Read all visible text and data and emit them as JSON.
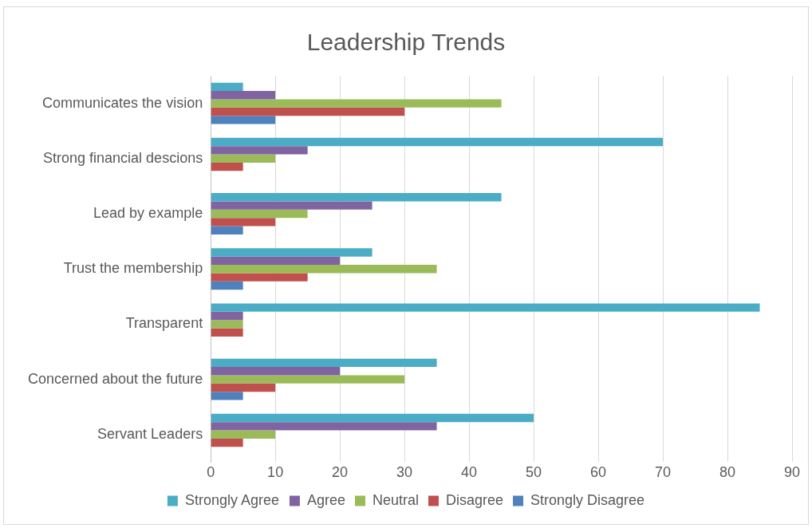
{
  "chart_data": {
    "type": "bar",
    "orientation": "horizontal",
    "title": "Leadership Trends",
    "categories": [
      "Communicates the vision",
      "Strong financial descions",
      "Lead by example",
      "Trust the membership",
      "Transparent",
      "Concerned about the future",
      "Servant Leaders"
    ],
    "series": [
      {
        "name": "Strongly Agree",
        "color": "#4bacc6",
        "values": [
          5,
          70,
          45,
          25,
          85,
          35,
          50
        ]
      },
      {
        "name": "Agree",
        "color": "#8064a2",
        "values": [
          10,
          15,
          25,
          20,
          5,
          20,
          35
        ]
      },
      {
        "name": "Neutral",
        "color": "#9bbb59",
        "values": [
          45,
          10,
          15,
          35,
          5,
          30,
          10
        ]
      },
      {
        "name": "Disagree",
        "color": "#c0504d",
        "values": [
          30,
          5,
          10,
          15,
          5,
          10,
          5
        ]
      },
      {
        "name": "Strongly Disagree",
        "color": "#4f81bd",
        "values": [
          10,
          0,
          5,
          5,
          0,
          5,
          0
        ]
      }
    ],
    "xlim": [
      0,
      90
    ],
    "xticks": [
      0,
      10,
      20,
      30,
      40,
      50,
      60,
      70,
      80,
      90
    ],
    "grid": "x",
    "legend": "bottom"
  }
}
